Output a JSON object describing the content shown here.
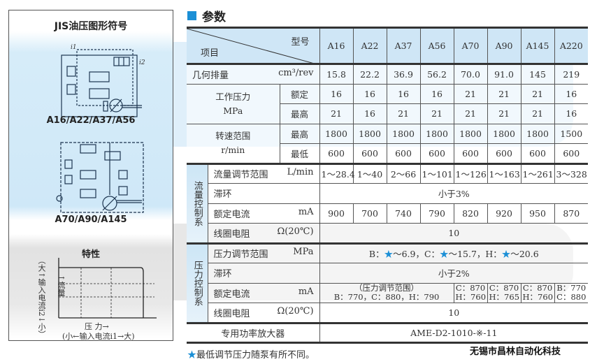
{
  "left_panel": {
    "title": "JIS油压图形符号",
    "symbol1_caption": "A16/A22/A37/A56",
    "symbol2_caption": "A70/A90/A145",
    "char_title": "特性",
    "y_axis_label": "（大↑输入电流i2↓小）",
    "flow_label": "↑流量",
    "x_axis_label": "压 力→",
    "x_axis_sub": "(小←输入电流i1→大)",
    "i1": "i1",
    "i2": "i2"
  },
  "section": {
    "title": "参数"
  },
  "table": {
    "header": {
      "model_label": "型号",
      "item_label": "项目",
      "models": [
        "A16",
        "A22",
        "A37",
        "A56",
        "A70",
        "A90",
        "A145",
        "A220"
      ]
    },
    "displacement": {
      "name": "几何排量",
      "unit": "cm³/rev",
      "values": [
        "15.8",
        "22.2",
        "36.9",
        "56.2",
        "70.0",
        "91.0",
        "145",
        "219"
      ]
    },
    "pressure": {
      "name": "工作压力",
      "unit": "MPa",
      "rated_label": "额定",
      "rated": [
        "16",
        "16",
        "16",
        "16",
        "21",
        "21",
        "21",
        "16"
      ],
      "max_label": "最高",
      "max": [
        "21",
        "16",
        "21",
        "21",
        "21",
        "21",
        "21",
        "16"
      ]
    },
    "speed": {
      "name": "转速范围",
      "unit": "r/min",
      "max_label": "最高",
      "max": [
        "1800",
        "1800",
        "1800",
        "1800",
        "1800",
        "1800",
        "1800",
        "1500"
      ],
      "min_label": "最低",
      "min": [
        "600",
        "600",
        "600",
        "600",
        "600",
        "600",
        "600",
        "600"
      ]
    },
    "flow_control": {
      "group": "流量控制系",
      "range": {
        "name": "流量调节范围",
        "unit": "L/min",
        "values": [
          "1～28.4",
          "1～40",
          "2～66",
          "1～101",
          "1～126",
          "1～163",
          "1～261",
          "3～328"
        ]
      },
      "hysteresis": {
        "name": "滞环",
        "value": "小于3%"
      },
      "current": {
        "name": "额定电流",
        "unit": "mA",
        "values": [
          "900",
          "700",
          "740",
          "790",
          "820",
          "920",
          "950",
          "870"
        ]
      },
      "resistance": {
        "name": "线圈电阻",
        "unit": "Ω(20℃)",
        "value": "10"
      }
    },
    "pressure_control": {
      "group": "压力控制系",
      "range": {
        "name": "压力调节范围",
        "unit": "MPa",
        "star": "★",
        "b_label": "B：",
        "b_value": "～6.9，C：",
        "c_value": "～15.7，H：",
        "h_value": "～20.6"
      },
      "hysteresis": {
        "name": "滞环",
        "value": "小于2%"
      },
      "current": {
        "name": "额定电流",
        "unit": "mA",
        "common_line1": "（压力调节范围）",
        "common_line2": "B：770，C：880，H：790",
        "cells": [
          [
            "C：870",
            "H：760"
          ],
          [
            "C：870",
            "H：765"
          ],
          [
            "C：870",
            "H：760"
          ],
          [
            "B：770",
            "C：880"
          ]
        ]
      },
      "resistance": {
        "name": "线圈电阻",
        "unit": "Ω(20℃)",
        "value": "10"
      }
    },
    "amplifier": {
      "name": "专用功率放大器",
      "value": "AME-D2-1010-※-11"
    }
  },
  "footnote": {
    "star": "★",
    "text": "最低调节压力随泵有所不同。"
  },
  "company": "无锡市昌林自动化科技",
  "colors": {
    "accent": "#1b8fd6",
    "header_bg": "#cfe6f6"
  }
}
